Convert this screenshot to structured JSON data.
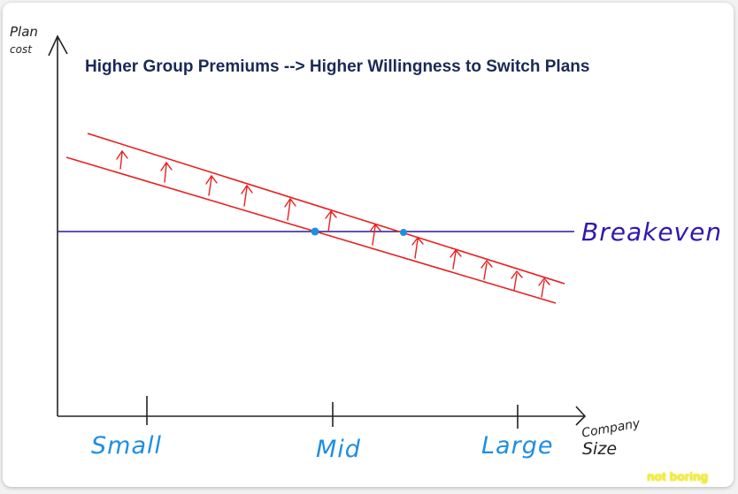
{
  "title": "Higher Group Premiums --> Higher Willingness to Switch Plans",
  "y_axis": {
    "line1": "Plan",
    "line2": "cost"
  },
  "x_axis": {
    "line1": "Company",
    "line2": "Size"
  },
  "ticks": [
    "Small",
    "Mid",
    "Large"
  ],
  "breakeven_label": "Breakeven",
  "watermark": "not boring",
  "colors": {
    "axis": "#222222",
    "cost_lines": "#e82020",
    "breakeven": "#2a1a9a",
    "intersections": "#1e8ee0",
    "tick_labels": "#1e8ee0",
    "title": "#1a2a55"
  }
}
